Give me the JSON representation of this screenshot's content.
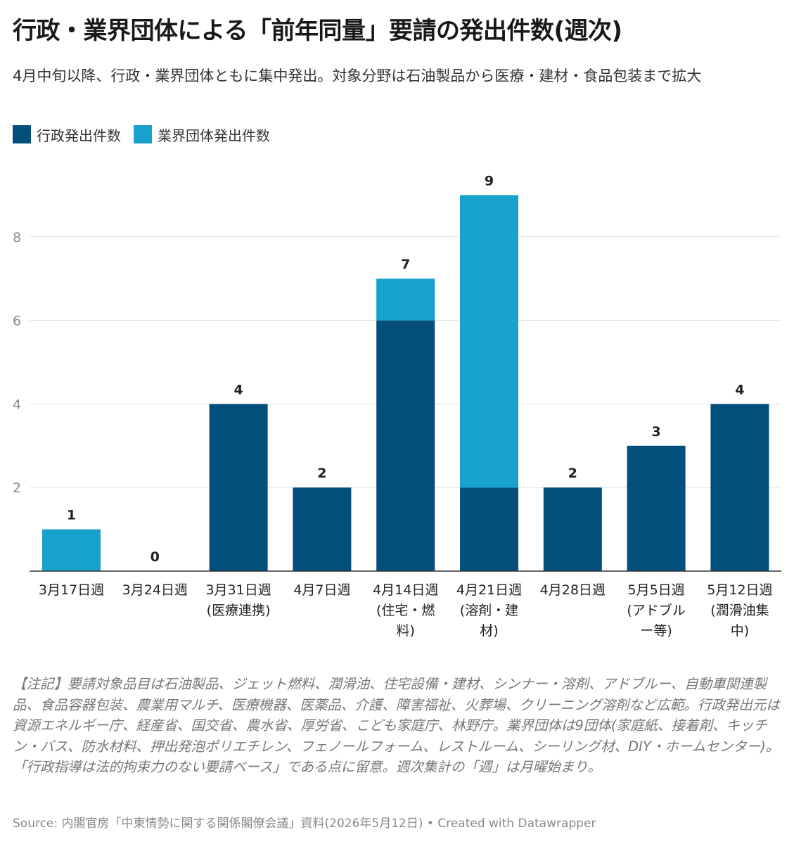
{
  "header": {
    "title": "行政・業界団体による「前年同量」要請の発出件数(週次)",
    "subtitle": "4月中旬以降、行政・業界団体ともに集中発出。対象分野は石油製品から医療・建材・食品包装まで拡大"
  },
  "legend": [
    {
      "label": "行政発出件数",
      "color": "#034e7b"
    },
    {
      "label": "業界団体発出件数",
      "color": "#17a1cd"
    }
  ],
  "chart_data": {
    "type": "bar",
    "stacked": true,
    "categories": [
      [
        "3月17日週"
      ],
      [
        "3月24日週"
      ],
      [
        "3月31日週",
        "(医療連携)"
      ],
      [
        "4月7日週"
      ],
      [
        "4月14日週",
        "(住宅・燃",
        "料)"
      ],
      [
        "4月21日週",
        "(溶剤・建",
        "材)"
      ],
      [
        "4月28日週"
      ],
      [
        "5月5日週",
        "(アドブル",
        "ー等)"
      ],
      [
        "5月12日週",
        "(潤滑油集",
        "中)"
      ]
    ],
    "series": [
      {
        "name": "行政発出件数",
        "color": "#034e7b",
        "values": [
          0,
          0,
          4,
          2,
          6,
          2,
          2,
          3,
          4
        ]
      },
      {
        "name": "業界団体発出件数",
        "color": "#17a1cd",
        "values": [
          1,
          0,
          0,
          0,
          1,
          7,
          0,
          0,
          0
        ]
      }
    ],
    "totals": [
      "1",
      "0",
      "4",
      "2",
      "7",
      "9",
      "2",
      "3",
      "4"
    ],
    "yticks": [
      "2",
      "4",
      "6",
      "8"
    ],
    "ylim": [
      0,
      9.6
    ],
    "grid": true,
    "legend_position": "top-left"
  },
  "footer": {
    "note": "【注記】要請対象品目は石油製品、ジェット燃料、潤滑油、住宅設備・建材、シンナー・溶剤、アドブルー、自動車関連製品、食品容器包装、農業用マルチ、医療機器、医薬品、介護、障害福祉、火葬場、クリーニング溶剤など広範。行政発出元は資源エネルギー庁、経産省、国交省、農水省、厚労省、こども家庭庁、林野庁。業界団体は9団体(家庭紙、接着剤、キッチン・バス、防水材料、押出発泡ポリエチレン、フェノールフォーム、レストルーム、シーリング材、DIY・ホームセンター)。「行政指導は法的拘束力のない要請ベース」である点に留意。週次集計の「週」は月曜始まり。",
    "source": "Source: 内閣官房「中東情勢に関する関係閣僚会議」資料(2026年5月12日) • Created with Datawrapper"
  }
}
